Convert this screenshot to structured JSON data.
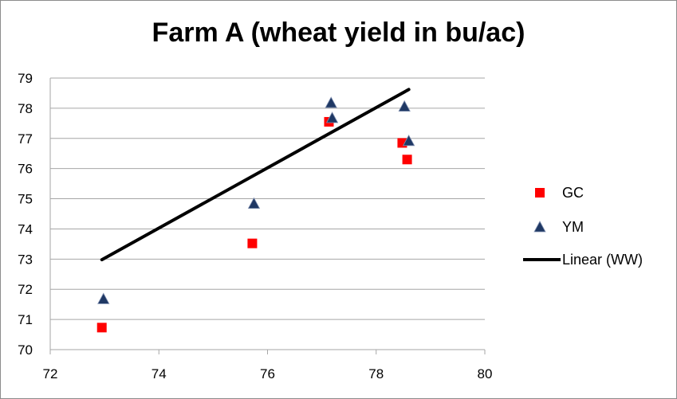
{
  "chart_data": {
    "type": "scatter",
    "title": "Farm A (wheat yield in bu/ac)",
    "xlabel": "",
    "ylabel": "",
    "xlim": [
      72,
      80
    ],
    "ylim": [
      70,
      79
    ],
    "x_ticks": [
      72,
      74,
      76,
      78,
      80
    ],
    "y_ticks": [
      70,
      71,
      72,
      73,
      74,
      75,
      76,
      77,
      78,
      79
    ],
    "grid": "horizontal",
    "legend_position": "right",
    "series": [
      {
        "name": "GC",
        "marker": "square",
        "color": "#ff0000",
        "points": [
          {
            "x": 72.95,
            "y": 70.73
          },
          {
            "x": 75.72,
            "y": 73.52
          },
          {
            "x": 77.13,
            "y": 77.55
          },
          {
            "x": 78.48,
            "y": 76.85
          },
          {
            "x": 78.57,
            "y": 76.3
          }
        ]
      },
      {
        "name": "YM",
        "marker": "triangle",
        "color": "#1f3864",
        "points": [
          {
            "x": 72.98,
            "y": 71.68
          },
          {
            "x": 75.75,
            "y": 74.84
          },
          {
            "x": 77.17,
            "y": 78.18
          },
          {
            "x": 77.19,
            "y": 77.68
          },
          {
            "x": 78.52,
            "y": 78.06
          },
          {
            "x": 78.6,
            "y": 76.92
          }
        ]
      },
      {
        "name": "Linear (WW)",
        "type": "line",
        "color": "#000000",
        "points": [
          {
            "x": 72.95,
            "y": 72.98
          },
          {
            "x": 78.6,
            "y": 78.62
          }
        ]
      }
    ]
  }
}
